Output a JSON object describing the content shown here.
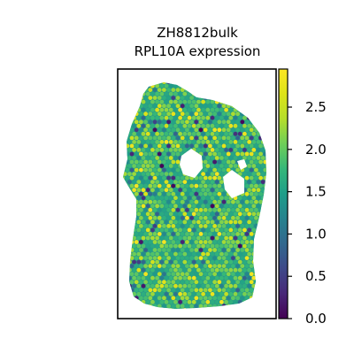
{
  "chart_data": {
    "type": "scatter",
    "title_line1": "ZH8812bulk",
    "title_line2": "RPL10A expression",
    "xlabel": "",
    "ylabel": "",
    "grid": false,
    "colorbar": {
      "colormap": "viridis",
      "range": [
        0.0,
        2.95
      ],
      "ticks": [
        "0.0",
        "0.5",
        "1.0",
        "1.5",
        "2.0",
        "2.5"
      ],
      "tick_values": [
        0.0,
        0.5,
        1.0,
        1.5,
        2.0,
        2.5
      ]
    },
    "value_distribution": {
      "dominant_range": [
        1.5,
        2.3
      ],
      "low_value_spots": "scattered, mostly near tissue edges",
      "high_value_spots": "scattered yellow spots throughout"
    }
  }
}
